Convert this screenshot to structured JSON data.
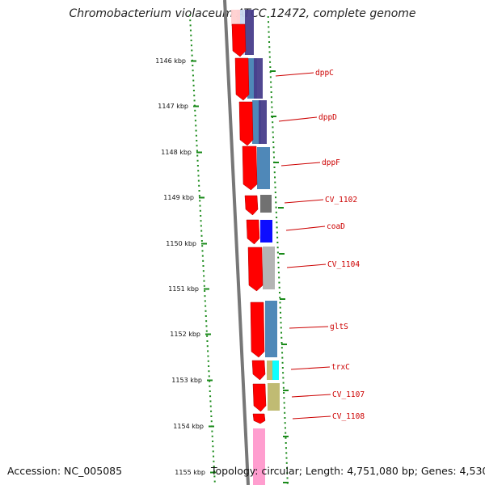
{
  "title": "Chromobacterium violaceum ATCC 12472, complete genome",
  "footer": {
    "accession": "Accession: NC_005085",
    "topology": "Topology: circular; Length: 4,751,080 bp; Genes: 4,530"
  },
  "ticks": [
    "1146 kbp",
    "1147 kbp",
    "1148 kbp",
    "1149 kbp",
    "1150 kbp",
    "1151 kbp",
    "1152 kbp",
    "1153 kbp",
    "1154 kbp",
    "1155 kbp"
  ],
  "gene_labels": [
    {
      "text": "dppC",
      "color": "#cc0000"
    },
    {
      "text": "dppD",
      "color": "#cc0000"
    },
    {
      "text": "dppF",
      "color": "#cc0000"
    },
    {
      "text": "CV_1102",
      "color": "#cc0000"
    },
    {
      "text": "coaD",
      "color": "#cc0000"
    },
    {
      "text": "CV_1104",
      "color": "#cc0000"
    },
    {
      "text": "gltS",
      "color": "#cc0000"
    },
    {
      "text": "trxC",
      "color": "#cc0000"
    },
    {
      "text": "CV_1107",
      "color": "#cc0000"
    },
    {
      "text": "CV_1108",
      "color": "#cc0000"
    }
  ],
  "colors": {
    "gene_red": "#ff0000",
    "tick_green": "#1a8a1a",
    "backbone": "#777777",
    "cog_blue": "#4682b4",
    "cog_purple": "#483d8b",
    "cog_gray": "#696969",
    "cog_bright_blue": "#0000ff",
    "cog_silver": "#b0b0b0",
    "cog_cyan": "#00ffff",
    "cog_khaki": "#bdb76b",
    "cog_pink": "#ff99cc"
  }
}
